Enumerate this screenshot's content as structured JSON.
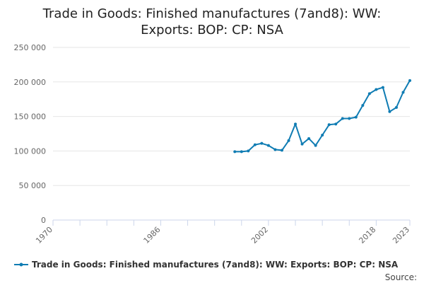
{
  "chart_data": {
    "type": "line",
    "title_lines": [
      "Trade in Goods: Finished manufactures (7and8): WW:",
      "Exports: BOP: CP: NSA"
    ],
    "xlabel": "",
    "ylabel": "",
    "xlim": [
      1970,
      2023
    ],
    "ylim": [
      0,
      250000
    ],
    "x_ticks": [
      1970,
      1974,
      1978,
      1982,
      1986,
      1990,
      1994,
      1998,
      2002,
      2006,
      2010,
      2014,
      2018,
      2023
    ],
    "x_tick_labels": [
      {
        "x": 1970,
        "label": "1970"
      },
      {
        "x": 1986,
        "label": "1986"
      },
      {
        "x": 2002,
        "label": "2002"
      },
      {
        "x": 2018,
        "label": "2018"
      },
      {
        "x": 2023,
        "label": "2023"
      }
    ],
    "y_ticks": [
      {
        "value": 0,
        "label": "0"
      },
      {
        "value": 50000,
        "label": "50 000"
      },
      {
        "value": 100000,
        "label": "100 000"
      },
      {
        "value": 150000,
        "label": "150 000"
      },
      {
        "value": 200000,
        "label": "200 000"
      },
      {
        "value": 250000,
        "label": "250 000"
      }
    ],
    "grid": true,
    "legend_position": "bottom",
    "series": [
      {
        "name": "Trade in Goods: Finished manufactures (7and8): WW: Exports: BOP: CP: NSA",
        "color": "#0f7cb3",
        "x": [
          1997,
          1998,
          1999,
          2000,
          2001,
          2002,
          2003,
          2004,
          2005,
          2006,
          2007,
          2008,
          2009,
          2010,
          2011,
          2012,
          2013,
          2014,
          2015,
          2016,
          2017,
          2018,
          2019,
          2020,
          2021,
          2022,
          2023
        ],
        "y": [
          99000,
          99000,
          100000,
          109000,
          111000,
          108000,
          102000,
          101000,
          115000,
          139000,
          110000,
          118000,
          108000,
          123000,
          138000,
          139000,
          147000,
          147000,
          149000,
          166000,
          183000,
          189000,
          192000,
          157000,
          163000,
          185000,
          202000
        ]
      }
    ]
  },
  "source_label": "Source:"
}
